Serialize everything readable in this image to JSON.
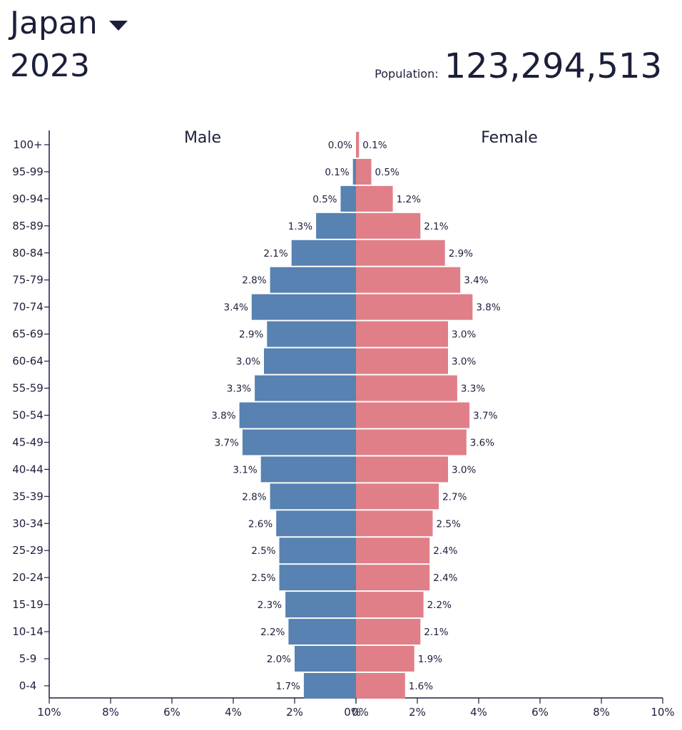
{
  "header": {
    "country": "Japan",
    "year": "2023",
    "population_label": "Population:",
    "population_value": "123,294,513"
  },
  "colors": {
    "male": "#5782b1",
    "female": "#e07f88",
    "text": "#1b1f3b"
  },
  "icons": {
    "dropdown": "caret-down-icon"
  },
  "chart_data": {
    "type": "bar",
    "orientation": "horizontal-pyramid",
    "categories": [
      "100+",
      "95-99",
      "90-94",
      "85-89",
      "80-84",
      "75-79",
      "70-74",
      "65-69",
      "60-64",
      "55-59",
      "50-54",
      "45-49",
      "40-44",
      "35-39",
      "30-34",
      "25-29",
      "20-24",
      "15-19",
      "10-14",
      "5-9",
      "0-4"
    ],
    "series": [
      {
        "name": "Male",
        "side": "left",
        "values": [
          0.0,
          0.1,
          0.5,
          1.3,
          2.1,
          2.8,
          3.4,
          2.9,
          3.0,
          3.3,
          3.8,
          3.7,
          3.1,
          2.8,
          2.6,
          2.5,
          2.5,
          2.3,
          2.2,
          2.0,
          1.7
        ],
        "labels": [
          "0.0%",
          "0.1%",
          "0.5%",
          "1.3%",
          "2.1%",
          "2.8%",
          "3.4%",
          "2.9%",
          "3.0%",
          "3.3%",
          "3.8%",
          "3.7%",
          "3.1%",
          "2.8%",
          "2.6%",
          "2.5%",
          "2.5%",
          "2.3%",
          "2.2%",
          "2.0%",
          "1.7%"
        ]
      },
      {
        "name": "Female",
        "side": "right",
        "values": [
          0.1,
          0.5,
          1.2,
          2.1,
          2.9,
          3.4,
          3.8,
          3.0,
          3.0,
          3.3,
          3.7,
          3.6,
          3.0,
          2.7,
          2.5,
          2.4,
          2.4,
          2.2,
          2.1,
          1.9,
          1.6
        ],
        "labels": [
          "0.1%",
          "0.5%",
          "1.2%",
          "2.1%",
          "2.9%",
          "3.4%",
          "3.8%",
          "3.0%",
          "3.0%",
          "3.3%",
          "3.7%",
          "3.6%",
          "3.0%",
          "2.7%",
          "2.5%",
          "2.4%",
          "2.4%",
          "2.2%",
          "2.1%",
          "1.9%",
          "1.6%"
        ]
      }
    ],
    "x_ticks": [
      "10%",
      "8%",
      "6%",
      "4%",
      "2%",
      "0%",
      "0%",
      "2%",
      "4%",
      "6%",
      "8%",
      "10%"
    ],
    "xlim": [
      -10,
      10
    ],
    "legend": [
      "Male",
      "Female"
    ]
  }
}
